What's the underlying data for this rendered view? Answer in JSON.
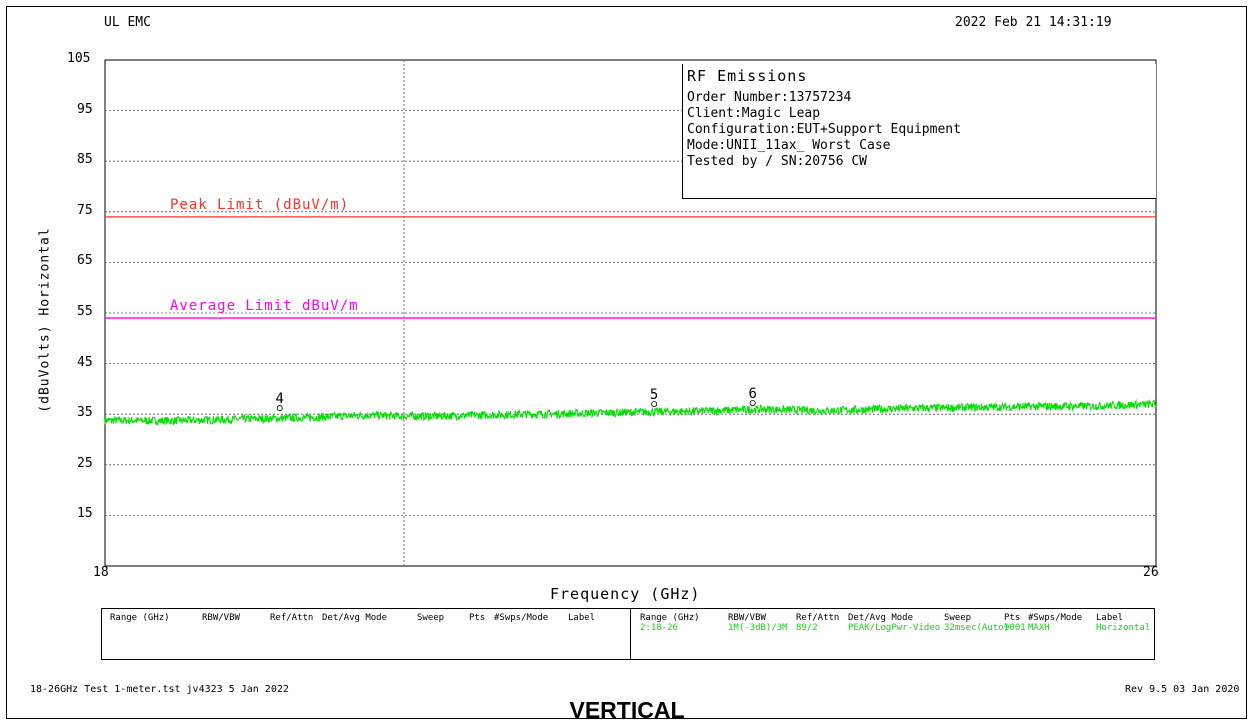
{
  "header": {
    "left": "UL EMC",
    "right": "2022 Feb 21    14:31:19"
  },
  "info_box": {
    "title": "RF Emissions",
    "lines": [
      "Order Number:13757234",
      "Client:Magic Leap",
      "Configuration:EUT+Support Equipment",
      "Mode:UNII_11ax_ Worst Case",
      "Tested by / SN:20756 CW"
    ]
  },
  "settings_table": {
    "headers": [
      "Range (GHz)",
      "RBW/VBW",
      "Ref/Attn",
      "Det/Avg Mode",
      "Sweep",
      "Pts",
      "#Swps/Mode",
      "Label"
    ],
    "row": [
      "2:18-26",
      "1M(-3dB)/3M",
      "89/2",
      "PEAK/LogPwr-Video",
      "32msec(Auto)",
      "9001",
      "MAXH",
      "Horizontal"
    ]
  },
  "footer": {
    "left": "18-26GHz Test 1-meter.tst jv4323  5 Jan 2022",
    "right": "Rev 9.5 03 Jan 2020"
  },
  "caption": "VERTICAL",
  "colors": {
    "trace": "#00e000",
    "peak_limit": "#ff3030",
    "average_limit": "#ff00ff",
    "settings_values": "#14d614"
  },
  "chart_data": {
    "type": "line",
    "title": "",
    "xlabel": "Frequency (GHz)",
    "ylabel": "(dBuVolts) Horizontal",
    "xlim": [
      18,
      26
    ],
    "ylim": [
      5,
      105
    ],
    "x_tick_labels": [
      "18",
      "26"
    ],
    "y_ticks": [
      105,
      95,
      85,
      75,
      65,
      55,
      45,
      35,
      25,
      15
    ],
    "grid": true,
    "limit_lines": [
      {
        "name": "Peak Limit (dBuV/m)",
        "value": 74
      },
      {
        "name": "Average Limit dBuV/m",
        "value": 54
      }
    ],
    "series": [
      {
        "x": [
          18.0,
          18.5,
          19.0,
          19.5,
          20.0,
          20.25,
          20.5,
          21.0,
          21.5,
          22.0,
          22.5,
          23.0,
          23.5,
          24.0,
          24.5,
          25.0,
          25.5,
          26.0
        ],
        "y": [
          33.8,
          33.7,
          34.0,
          34.3,
          34.8,
          34.6,
          34.6,
          34.9,
          35.1,
          35.4,
          35.6,
          36.0,
          35.7,
          36.1,
          36.3,
          36.5,
          36.6,
          37.0
        ]
      }
    ],
    "markers": [
      {
        "label": "4",
        "x": 19.33,
        "y": 35.6
      },
      {
        "label": "5",
        "x": 22.18,
        "y": 36.4
      },
      {
        "label": "6",
        "x": 22.93,
        "y": 36.6
      }
    ]
  }
}
